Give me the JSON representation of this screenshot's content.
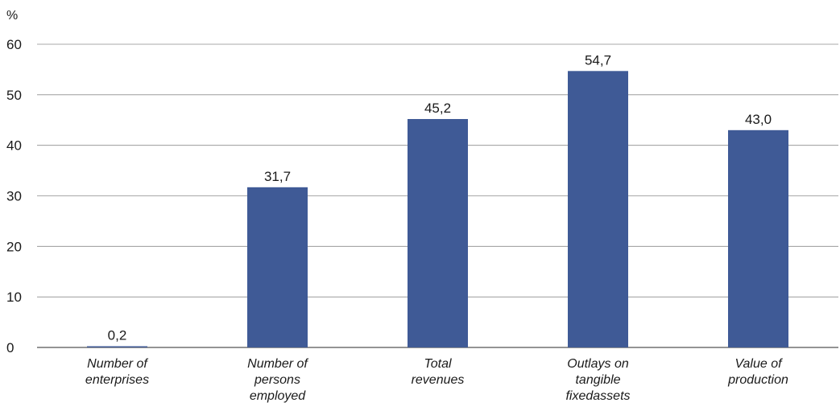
{
  "chart_data": {
    "type": "bar",
    "unit_label": "%",
    "categories": [
      [
        "Number of",
        "enterprises"
      ],
      [
        "Number of",
        "persons",
        "employed"
      ],
      [
        "Total",
        "revenues"
      ],
      [
        "Outlays on",
        "tangible",
        "fixedassets"
      ],
      [
        "Value of",
        "production"
      ]
    ],
    "values": [
      0.2,
      31.7,
      45.2,
      54.7,
      43.0
    ],
    "data_labels": [
      "0,2",
      "31,7",
      "45,2",
      "54,7",
      "43,0"
    ],
    "ylim": [
      0,
      60
    ],
    "yticks": [
      0,
      10,
      20,
      30,
      40,
      50,
      60
    ],
    "grid": true,
    "colors": {
      "bar": "#3F5A96",
      "grid": "#8c8c8c",
      "axis": "#555555"
    }
  }
}
